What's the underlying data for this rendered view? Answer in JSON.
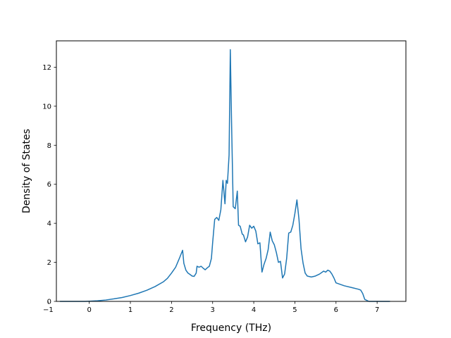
{
  "chart_data": {
    "type": "line",
    "title": "",
    "xlabel": "Frequency (THz)",
    "ylabel": "Density of States",
    "xlim": [
      -0.8,
      7.7
    ],
    "ylim": [
      0,
      13.35
    ],
    "x_ticks": [
      -1,
      0,
      1,
      2,
      3,
      4,
      5,
      6,
      7
    ],
    "x_tick_labels": [
      "−1",
      "0",
      "1",
      "2",
      "3",
      "4",
      "5",
      "6",
      "7"
    ],
    "y_ticks": [
      0,
      2,
      4,
      6,
      8,
      10,
      12
    ],
    "y_tick_labels": [
      "0",
      "2",
      "4",
      "6",
      "8",
      "10",
      "12"
    ],
    "grid": false,
    "legend": "none",
    "series_color": "#1f77b4",
    "series": [
      {
        "x": [
          -0.7,
          -0.5,
          -0.3,
          -0.1,
          0.0,
          0.2,
          0.4,
          0.6,
          0.8,
          1.0,
          1.2,
          1.4,
          1.6,
          1.8,
          1.9,
          2.0,
          2.1,
          2.2,
          2.27,
          2.3,
          2.35,
          2.4,
          2.45,
          2.5,
          2.55,
          2.6,
          2.62,
          2.67,
          2.72,
          2.77,
          2.82,
          2.87,
          2.92,
          2.97,
          3.0,
          3.05,
          3.1,
          3.15,
          3.2,
          3.25,
          3.3,
          3.33,
          3.36,
          3.4,
          3.43,
          3.46,
          3.5,
          3.55,
          3.6,
          3.63,
          3.67,
          3.72,
          3.75,
          3.8,
          3.85,
          3.9,
          3.95,
          4.0,
          4.05,
          4.1,
          4.15,
          4.2,
          4.25,
          4.3,
          4.35,
          4.4,
          4.45,
          4.5,
          4.55,
          4.6,
          4.65,
          4.7,
          4.75,
          4.8,
          4.85,
          4.9,
          4.95,
          5.0,
          5.05,
          5.1,
          5.15,
          5.2,
          5.25,
          5.3,
          5.4,
          5.5,
          5.6,
          5.7,
          5.75,
          5.8,
          5.85,
          5.9,
          5.95,
          6.0,
          6.2,
          6.4,
          6.55,
          6.6,
          6.65,
          6.7,
          6.8,
          7.0,
          7.2,
          7.3
        ],
        "y": [
          0.0,
          0.0,
          0.0,
          0.0,
          0.01,
          0.03,
          0.07,
          0.13,
          0.2,
          0.3,
          0.42,
          0.57,
          0.76,
          1.0,
          1.18,
          1.45,
          1.75,
          2.25,
          2.62,
          1.95,
          1.6,
          1.45,
          1.38,
          1.3,
          1.28,
          1.45,
          1.8,
          1.75,
          1.8,
          1.7,
          1.62,
          1.72,
          1.8,
          2.2,
          3.0,
          4.2,
          4.3,
          4.15,
          4.7,
          6.2,
          5.0,
          6.2,
          6.05,
          7.5,
          12.9,
          9.2,
          4.85,
          4.75,
          5.65,
          3.9,
          3.85,
          3.45,
          3.4,
          3.05,
          3.3,
          3.9,
          3.75,
          3.85,
          3.6,
          2.95,
          3.0,
          1.5,
          1.9,
          2.2,
          2.65,
          3.55,
          3.1,
          2.9,
          2.5,
          2.0,
          2.05,
          1.2,
          1.4,
          2.2,
          3.5,
          3.55,
          3.9,
          4.5,
          5.2,
          4.2,
          2.7,
          1.95,
          1.45,
          1.3,
          1.25,
          1.3,
          1.4,
          1.55,
          1.5,
          1.6,
          1.55,
          1.4,
          1.2,
          0.95,
          0.8,
          0.7,
          0.62,
          0.58,
          0.4,
          0.1,
          0.0,
          0.0,
          0.0,
          0.0
        ]
      }
    ]
  }
}
